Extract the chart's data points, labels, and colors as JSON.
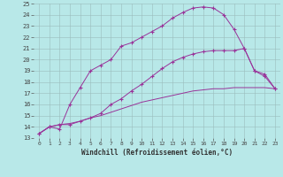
{
  "xlabel": "Windchill (Refroidissement éolien,°C)",
  "xlim": [
    -0.5,
    23.5
  ],
  "ylim": [
    13,
    25
  ],
  "xticks": [
    0,
    1,
    2,
    3,
    4,
    5,
    6,
    7,
    8,
    9,
    10,
    11,
    12,
    13,
    14,
    15,
    16,
    17,
    18,
    19,
    20,
    21,
    22,
    23
  ],
  "yticks": [
    13,
    14,
    15,
    16,
    17,
    18,
    19,
    20,
    21,
    22,
    23,
    24,
    25
  ],
  "bg_color": "#b8e8e8",
  "line_color": "#993399",
  "lines": [
    {
      "x": [
        0,
        1,
        2,
        3,
        4,
        5,
        6,
        7,
        8,
        9,
        10,
        11,
        12,
        13,
        14,
        15,
        16,
        17,
        18,
        19,
        20,
        21,
        22,
        23
      ],
      "y": [
        13.4,
        14.0,
        13.8,
        16.0,
        17.5,
        19.0,
        19.5,
        20.0,
        21.2,
        21.5,
        22.0,
        22.5,
        23.0,
        23.7,
        24.2,
        24.6,
        24.7,
        24.6,
        24.0,
        22.7,
        21.0,
        19.0,
        18.5,
        17.4
      ],
      "marker": "+"
    },
    {
      "x": [
        0,
        1,
        2,
        3,
        4,
        5,
        6,
        7,
        8,
        9,
        10,
        11,
        12,
        13,
        14,
        15,
        16,
        17,
        18,
        19,
        20,
        21,
        22,
        23
      ],
      "y": [
        13.4,
        14.0,
        14.2,
        14.2,
        14.5,
        14.8,
        15.2,
        16.0,
        16.5,
        17.2,
        17.8,
        18.5,
        19.2,
        19.8,
        20.2,
        20.5,
        20.7,
        20.8,
        20.8,
        20.8,
        21.0,
        19.0,
        18.7,
        17.4
      ],
      "marker": "+"
    },
    {
      "x": [
        0,
        1,
        2,
        3,
        4,
        5,
        6,
        7,
        8,
        9,
        10,
        11,
        12,
        13,
        14,
        15,
        16,
        17,
        18,
        19,
        20,
        21,
        22,
        23
      ],
      "y": [
        13.4,
        14.0,
        14.2,
        14.3,
        14.5,
        14.8,
        15.0,
        15.3,
        15.6,
        15.9,
        16.2,
        16.4,
        16.6,
        16.8,
        17.0,
        17.2,
        17.3,
        17.4,
        17.4,
        17.5,
        17.5,
        17.5,
        17.5,
        17.4
      ],
      "marker": null
    }
  ]
}
